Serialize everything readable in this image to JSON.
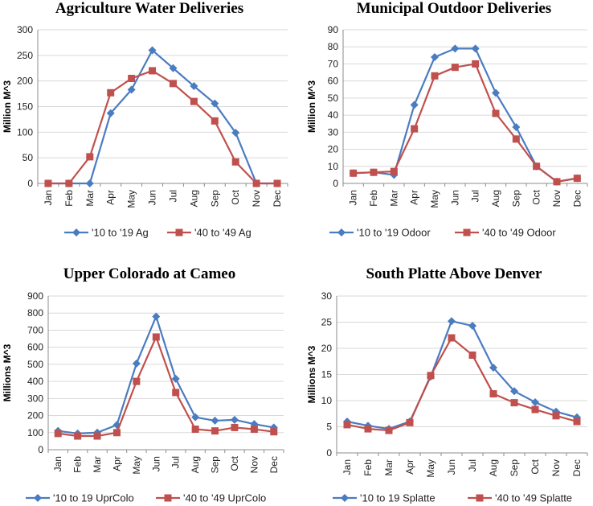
{
  "colors": {
    "series1": "#4a7cc0",
    "series2": "#c0504d",
    "gridline": "#d9d9d9",
    "axis": "#8c8c8c"
  },
  "chart_data": [
    {
      "type": "line",
      "title": "Agriculture Water Deliveries",
      "xlabel": "",
      "ylabel": "Million M^3",
      "categories": [
        "Jan",
        "Feb",
        "Mar",
        "Apr",
        "May",
        "Jun",
        "Jul",
        "Aug",
        "Sep",
        "Oct",
        "Nov",
        "Dec"
      ],
      "ylim": [
        0,
        300
      ],
      "yticks": [
        0,
        50,
        100,
        150,
        200,
        250,
        300
      ],
      "series": [
        {
          "name": "'10 to '19 Ag",
          "marker": "diamond",
          "values": [
            0,
            0,
            0,
            137,
            183,
            260,
            225,
            190,
            156,
            99,
            0,
            0
          ]
        },
        {
          "name": "'40 to '49 Ag",
          "marker": "square",
          "values": [
            0,
            0,
            52,
            177,
            205,
            220,
            195,
            160,
            122,
            42,
            0,
            0
          ]
        }
      ]
    },
    {
      "type": "line",
      "title": "Municipal Outdoor Deliveries",
      "xlabel": "",
      "ylabel": "Million M^3",
      "categories": [
        "Jan",
        "Feb",
        "Mar",
        "Apr",
        "May",
        "Jun",
        "Jul",
        "Aug",
        "Sep",
        "Oct",
        "Nov",
        "Dec"
      ],
      "ylim": [
        0,
        90
      ],
      "yticks": [
        0,
        10,
        20,
        30,
        40,
        50,
        60,
        70,
        80,
        90
      ],
      "series": [
        {
          "name": "'10 to '19 Odoor",
          "marker": "diamond",
          "values": [
            6,
            6.5,
            5,
            46,
            74,
            79,
            79,
            53,
            33,
            10,
            1,
            3
          ]
        },
        {
          "name": "'40 to '49 Odoor",
          "marker": "square",
          "values": [
            6,
            6.5,
            7,
            32,
            63,
            68,
            70,
            41,
            26,
            10,
            1,
            3
          ]
        }
      ]
    },
    {
      "type": "line",
      "title": "Upper Colorado at Cameo",
      "xlabel": "",
      "ylabel": "Millions M^3",
      "categories": [
        "Jan",
        "Feb",
        "Mar",
        "Apr",
        "May",
        "Jun",
        "Jul",
        "Aug",
        "Sep",
        "Oct",
        "Nov",
        "Dec"
      ],
      "ylim": [
        0,
        900
      ],
      "yticks": [
        0,
        100,
        200,
        300,
        400,
        500,
        600,
        700,
        800,
        900
      ],
      "series": [
        {
          "name": "'10 to 19 UprColo",
          "marker": "diamond",
          "values": [
            110,
            95,
            100,
            145,
            505,
            780,
            415,
            190,
            170,
            175,
            150,
            130
          ]
        },
        {
          "name": "'40 to '49 UprColo",
          "marker": "square",
          "values": [
            95,
            80,
            80,
            100,
            400,
            660,
            335,
            120,
            110,
            130,
            120,
            105
          ]
        }
      ]
    },
    {
      "type": "line",
      "title": "South Platte Above Denver",
      "xlabel": "",
      "ylabel": "Millions M^3",
      "categories": [
        "Jan",
        "Feb",
        "Mar",
        "Apr",
        "May",
        "Jun",
        "Jul",
        "Aug",
        "Sep",
        "Oct",
        "Nov",
        "Dec"
      ],
      "ylim": [
        0,
        30
      ],
      "yticks": [
        0,
        5,
        10,
        15,
        20,
        25,
        30
      ],
      "series": [
        {
          "name": "'10 to 19 Splatte",
          "marker": "diamond",
          "values": [
            6,
            5.2,
            4.6,
            6,
            14.6,
            25.2,
            24.3,
            16.3,
            11.8,
            9.7,
            7.9,
            6.8
          ]
        },
        {
          "name": "'40 to '49 Splatte",
          "marker": "square",
          "values": [
            5.4,
            4.6,
            4.3,
            5.8,
            14.8,
            22,
            18.7,
            11.3,
            9.6,
            8.3,
            7.1,
            6
          ]
        }
      ]
    }
  ]
}
